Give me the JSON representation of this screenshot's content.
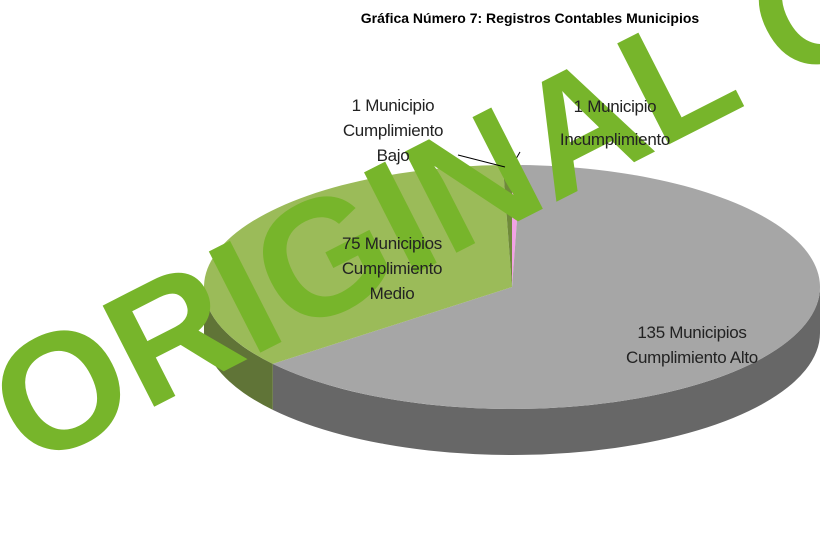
{
  "chart_data": {
    "type": "pie3d",
    "title": "Gráfica Número 7: Registros Contables Municipios",
    "watermark": "ORIGINAL OR",
    "categories": [
      "Incumplimiento",
      "Cumplimiento Alto",
      "Cumplimiento Medio",
      "Cumplimiento Bajo"
    ],
    "values": [
      1,
      135,
      75,
      1
    ],
    "value_labels": [
      "1 Municipio",
      "135 Municipios",
      "75 Municipios",
      "1 Municipio"
    ],
    "colors": [
      "#f2a2e4",
      "#a6a6a6",
      "#9bbb59",
      "#6f8a3a"
    ]
  }
}
